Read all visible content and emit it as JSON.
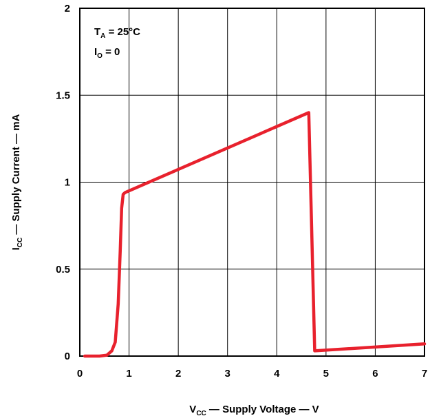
{
  "chart_data": {
    "type": "line",
    "x": [
      0.1,
      0.4,
      0.55,
      0.65,
      0.72,
      0.78,
      0.82,
      0.85,
      0.88,
      0.92,
      4.65,
      4.77,
      7.0
    ],
    "series": [
      {
        "values": [
          0,
          0,
          0.005,
          0.03,
          0.08,
          0.3,
          0.6,
          0.85,
          0.93,
          0.94,
          1.4,
          0.03,
          0.07
        ]
      }
    ],
    "xlabel": {
      "main": "V",
      "sub": "CC",
      "rest": " — Supply Voltage — V"
    },
    "ylabel": {
      "main": "I",
      "sub": "CC",
      "rest": " — Supply Current — mA"
    },
    "xlim": [
      0,
      7
    ],
    "ylim": [
      0,
      2
    ],
    "xticks": [
      "0",
      "1",
      "2",
      "3",
      "4",
      "5",
      "6",
      "7"
    ],
    "yticks": [
      "0",
      "0.5",
      "1",
      "1.5",
      "2"
    ],
    "grid": true,
    "line_color": "#e8212d",
    "annotations": [
      {
        "main": "T",
        "sub": "A",
        "rest": " = 25°C"
      },
      {
        "main": "I",
        "sub": "O",
        "rest": " = 0"
      }
    ]
  }
}
